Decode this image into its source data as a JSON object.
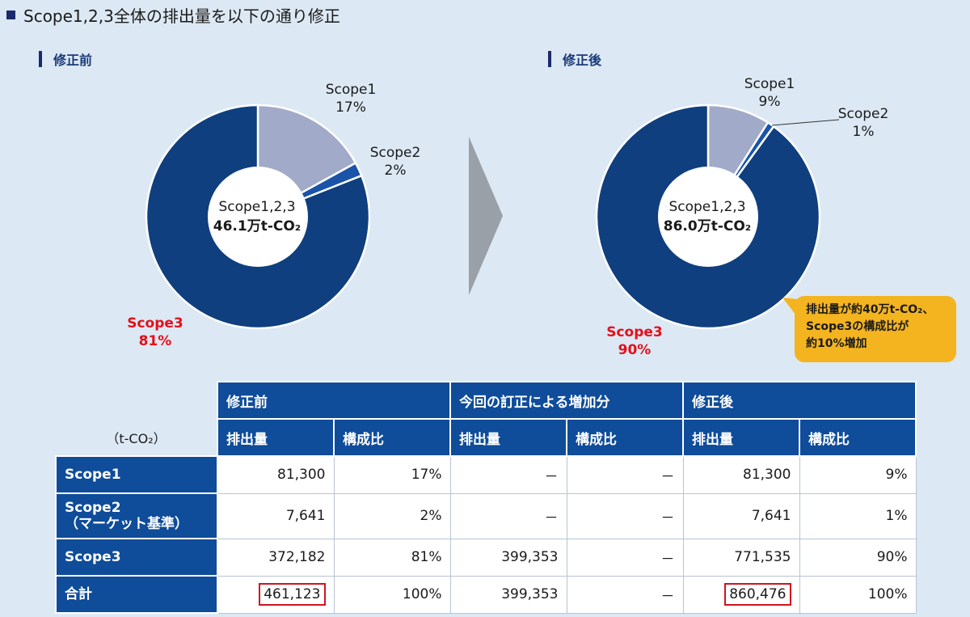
{
  "title": "Scope1,2,3全体の排出量を以下の通り修正",
  "before": {
    "label": "修正前",
    "center_line1": "Scope1,2,3",
    "center_line2": "46.1万t-CO₂",
    "scope1": {
      "name": "Scope1",
      "pct": "17%"
    },
    "scope2": {
      "name": "Scope2",
      "pct": "2%"
    },
    "scope3": {
      "name": "Scope3",
      "pct": "81%"
    }
  },
  "after": {
    "label": "修正後",
    "center_line1": "Scope1,2,3",
    "center_line2": "86.0万t-CO₂",
    "scope1": {
      "name": "Scope1",
      "pct": "9%"
    },
    "scope2": {
      "name": "Scope2",
      "pct": "1%"
    },
    "scope3": {
      "name": "Scope3",
      "pct": "90%"
    }
  },
  "callout": {
    "line1": "排出量が約40万t-CO₂、",
    "line2": "Scope3の構成比が",
    "line3": "約10%増加"
  },
  "colors": {
    "scope1": "#a1aac8",
    "scope2": "#1a54a8",
    "scope3": "#0f3f7e"
  },
  "chart_data": [
    {
      "type": "pie",
      "title": "修正前",
      "categories": [
        "Scope1",
        "Scope2",
        "Scope3"
      ],
      "values": [
        17,
        2,
        81
      ]
    },
    {
      "type": "pie",
      "title": "修正後",
      "categories": [
        "Scope1",
        "Scope2",
        "Scope3"
      ],
      "values": [
        9,
        1,
        90
      ]
    }
  ],
  "table": {
    "unit": "（t-CO₂）",
    "groups": [
      "修正前",
      "今回の訂正による増加分",
      "修正後"
    ],
    "subheaders": [
      "排出量",
      "構成比",
      "排出量",
      "構成比",
      "排出量",
      "構成比"
    ],
    "rows": [
      {
        "label": "Scope1",
        "cells": [
          "81,300",
          "17%",
          "－",
          "－",
          "81,300",
          "9%"
        ]
      },
      {
        "label": "Scope2",
        "label2": "（マーケット基準）",
        "cells": [
          "7,641",
          "2%",
          "－",
          "－",
          "7,641",
          "1%"
        ]
      },
      {
        "label": "Scope3",
        "cells": [
          "372,182",
          "81%",
          "399,353",
          "－",
          "771,535",
          "90%"
        ]
      },
      {
        "label": "合計",
        "cells": [
          "461,123",
          "100%",
          "399,353",
          "－",
          "860,476",
          "100%"
        ]
      }
    ]
  }
}
